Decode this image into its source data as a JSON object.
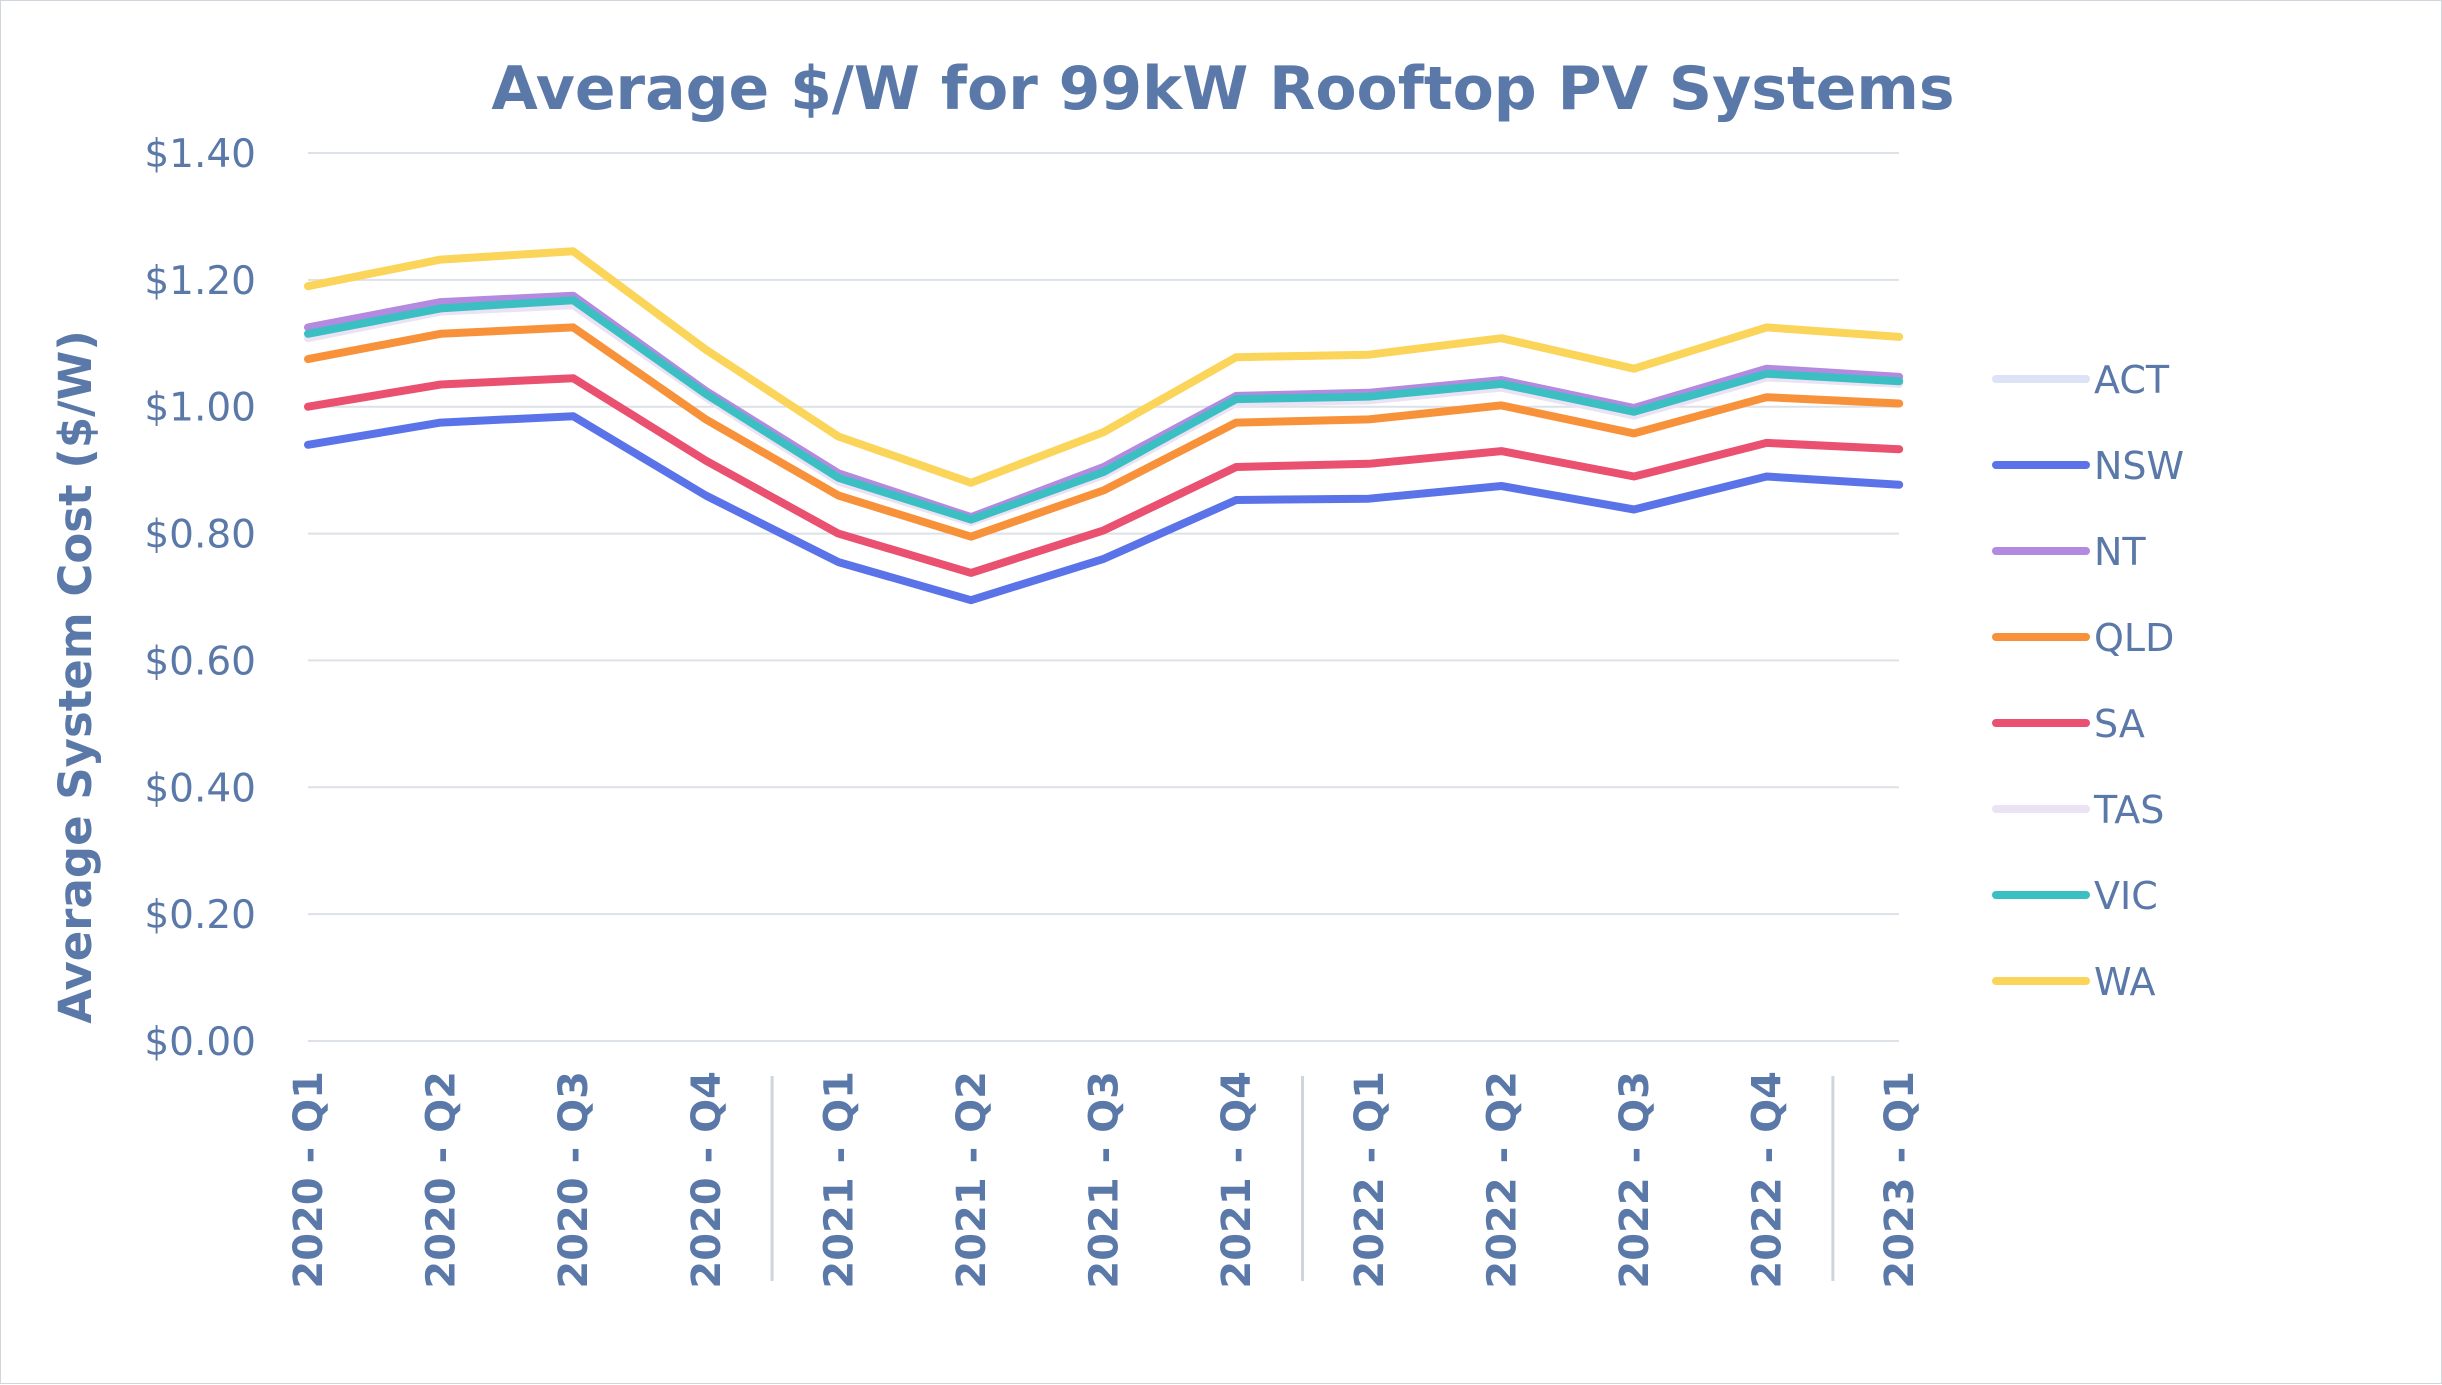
{
  "chart_data": {
    "type": "line",
    "title": "Average $/W for 99kW Rooftop PV Systems",
    "xlabel": "",
    "ylabel": "Average System Cost ($/W)",
    "ylim": [
      0,
      1.4
    ],
    "yticks": [
      0,
      0.2,
      0.4,
      0.6,
      0.8,
      1.0,
      1.2,
      1.4
    ],
    "ytick_labels": [
      "$0.00",
      "$0.20",
      "$0.40",
      "$0.60",
      "$0.80",
      "$1.00",
      "$1.20",
      "$1.40"
    ],
    "grid": true,
    "legend_position": "right",
    "categories": [
      "2020 - Q1",
      "2020 - Q2",
      "2020 - Q3",
      "2020 - Q4",
      "2021 - Q1",
      "2021 - Q2",
      "2021 - Q3",
      "2021 - Q4",
      "2022 - Q1",
      "2022 - Q2",
      "2022 - Q3",
      "2022 - Q4",
      "2023 - Q1"
    ],
    "series": [
      {
        "name": "ACT",
        "color": "#dce3f6",
        "values": [
          1.115,
          1.155,
          1.165,
          1.02,
          0.885,
          0.82,
          0.895,
          1.01,
          1.015,
          1.035,
          0.99,
          1.05,
          1.04
        ]
      },
      {
        "name": "NSW",
        "color": "#5a73e8",
        "values": [
          0.94,
          0.975,
          0.985,
          0.86,
          0.755,
          0.695,
          0.76,
          0.853,
          0.855,
          0.875,
          0.838,
          0.89,
          0.877
        ]
      },
      {
        "name": "NT",
        "color": "#b38ae0",
        "values": [
          1.125,
          1.165,
          1.175,
          1.025,
          0.895,
          0.826,
          0.905,
          1.017,
          1.022,
          1.042,
          0.998,
          1.06,
          1.047
        ]
      },
      {
        "name": "QLD",
        "color": "#f7923a",
        "values": [
          1.075,
          1.115,
          1.125,
          0.98,
          0.86,
          0.795,
          0.868,
          0.975,
          0.98,
          1.002,
          0.958,
          1.015,
          1.005
        ]
      },
      {
        "name": "SA",
        "color": "#ea506f",
        "values": [
          1.0,
          1.035,
          1.045,
          0.915,
          0.8,
          0.738,
          0.805,
          0.905,
          0.91,
          0.93,
          0.89,
          0.943,
          0.933
        ]
      },
      {
        "name": "TAS",
        "color": "#ebe3f4",
        "values": [
          1.108,
          1.15,
          1.16,
          1.015,
          0.882,
          0.818,
          0.892,
          1.006,
          1.01,
          1.03,
          0.986,
          1.046,
          1.036
        ]
      },
      {
        "name": "VIC",
        "color": "#3cbfc3",
        "values": [
          1.115,
          1.155,
          1.168,
          1.02,
          0.888,
          0.822,
          0.897,
          1.012,
          1.016,
          1.036,
          0.992,
          1.052,
          1.04
        ]
      },
      {
        "name": "WA",
        "color": "#fbd45a",
        "values": [
          1.19,
          1.232,
          1.245,
          1.09,
          0.953,
          0.88,
          0.96,
          1.078,
          1.082,
          1.108,
          1.06,
          1.125,
          1.11
        ]
      }
    ]
  }
}
